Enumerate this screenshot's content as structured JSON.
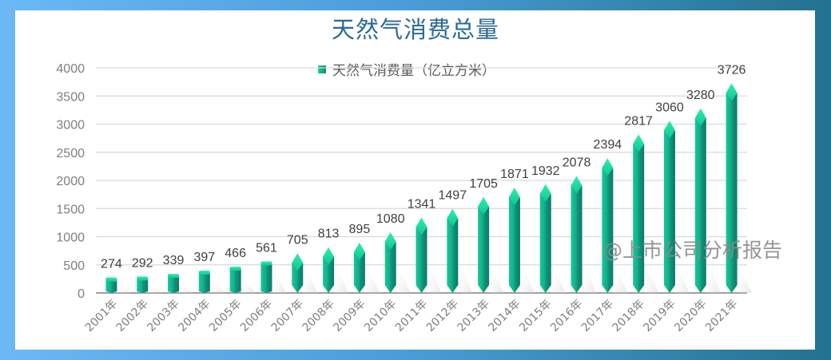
{
  "title": "天然气消费总量",
  "legend": {
    "label": "天然气消费量（亿立方米）",
    "icon": "square-swatch-icon"
  },
  "watermark": "@上市公司分析报告",
  "colors": {
    "bar_light": "#1ee6a2",
    "bar_dark": "#0c7d6a",
    "title": "#2b6a94",
    "frame_left": "#6cb8f4",
    "frame_right": "#23728f",
    "gridline": "#d9d9d9",
    "axis": "#7f7f7f"
  },
  "chart_data": {
    "type": "bar",
    "title": "天然气消费总量",
    "xlabel": "",
    "ylabel": "",
    "ylim": [
      0,
      4000
    ],
    "yticks": [
      0,
      500,
      1000,
      1500,
      2000,
      2500,
      3000,
      3500,
      4000
    ],
    "grid": true,
    "legend_position": "top",
    "categories": [
      "2001年",
      "2002年",
      "2003年",
      "2004年",
      "2005年",
      "2006年",
      "2007年",
      "2008年",
      "2009年",
      "2010年",
      "2011年",
      "2012年",
      "2013年",
      "2014年",
      "2015年",
      "2016年",
      "2017年",
      "2018年",
      "2019年",
      "2020年",
      "2021年"
    ],
    "series": [
      {
        "name": "天然气消费量（亿立方米）",
        "values": [
          274,
          292,
          339,
          397,
          466,
          561,
          705,
          813,
          895,
          1080,
          1341,
          1497,
          1705,
          1871,
          1932,
          2078,
          2394,
          2817,
          3060,
          3280,
          3726
        ]
      }
    ]
  }
}
